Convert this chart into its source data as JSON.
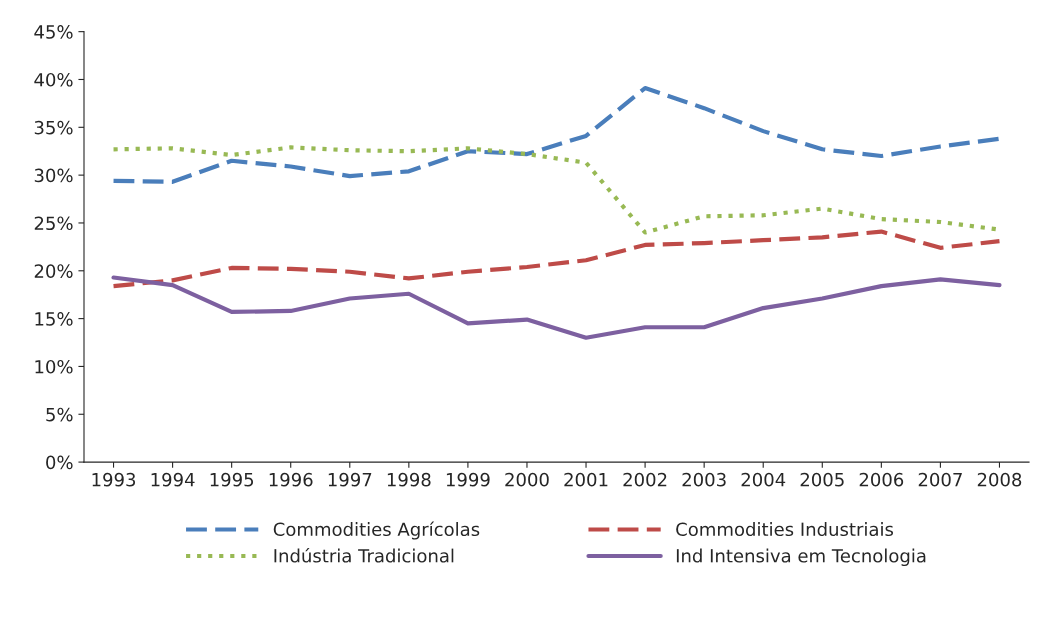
{
  "chart_data": {
    "type": "line",
    "categories": [
      "1993",
      "1994",
      "1995",
      "1996",
      "1997",
      "1998",
      "1999",
      "2000",
      "2001",
      "2002",
      "2003",
      "2004",
      "2005",
      "2006",
      "2007",
      "2008"
    ],
    "series": [
      {
        "name": "Commodities Agrícolas",
        "color": "#4a7ebb",
        "line_style": "dashed",
        "values": [
          29.4,
          29.3,
          31.5,
          30.9,
          29.9,
          30.4,
          32.5,
          32.2,
          34.1,
          39.1,
          37.0,
          34.6,
          32.7,
          32.0,
          33.0,
          33.8
        ]
      },
      {
        "name": "Commodities Industriais",
        "color": "#be4b48",
        "line_style": "dashed",
        "values": [
          18.4,
          19.0,
          20.3,
          20.2,
          19.9,
          19.2,
          19.9,
          20.4,
          21.1,
          22.7,
          22.9,
          23.2,
          23.5,
          24.1,
          22.4,
          23.1
        ]
      },
      {
        "name": "Indústria Tradicional",
        "color": "#98b954",
        "line_style": "dotted",
        "values": [
          32.7,
          32.8,
          32.1,
          32.9,
          32.6,
          32.5,
          32.8,
          32.2,
          31.3,
          24.0,
          25.7,
          25.8,
          26.5,
          25.4,
          25.1,
          24.3
        ]
      },
      {
        "name": "Ind Intensiva em Tecnologia",
        "color": "#7d60a0",
        "line_style": "solid",
        "values": [
          19.3,
          18.5,
          15.7,
          15.8,
          17.1,
          17.6,
          14.5,
          14.9,
          13.0,
          14.1,
          14.1,
          16.1,
          17.1,
          18.4,
          19.1,
          18.5
        ]
      }
    ],
    "ylim": [
      0,
      45
    ],
    "yticks": [
      {
        "value": 0,
        "label": "0%"
      },
      {
        "value": 5,
        "label": "5%"
      },
      {
        "value": 10,
        "label": "10%"
      },
      {
        "value": 15,
        "label": "15%"
      },
      {
        "value": 20,
        "label": "20%"
      },
      {
        "value": 25,
        "label": "25%"
      },
      {
        "value": 30,
        "label": "30%"
      },
      {
        "value": 35,
        "label": "35%"
      },
      {
        "value": 40,
        "label": "40%"
      },
      {
        "value": 45,
        "label": "45%"
      }
    ],
    "grid": false,
    "legend": "bottom",
    "marker": "none"
  }
}
